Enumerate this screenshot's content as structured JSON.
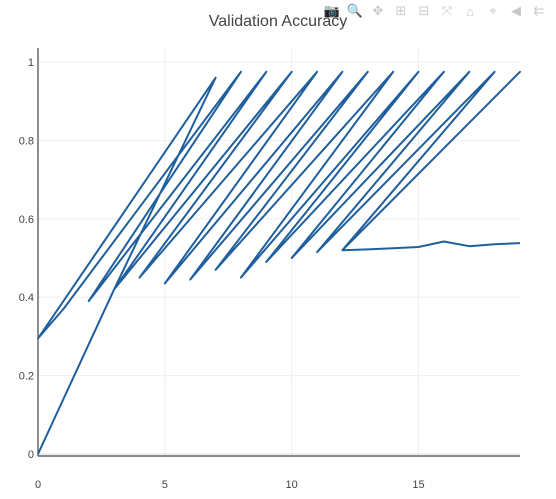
{
  "modebar": {
    "buttons": [
      {
        "name": "camera-icon",
        "glyph": "📷"
      },
      {
        "name": "zoom-icon",
        "glyph": "🔍"
      },
      {
        "name": "pan-icon",
        "glyph": "✥"
      },
      {
        "name": "zoom-in-icon",
        "glyph": "⊞"
      },
      {
        "name": "zoom-out-icon",
        "glyph": "⊟"
      },
      {
        "name": "autoscale-icon",
        "glyph": "⤧"
      },
      {
        "name": "reset-axes-icon",
        "glyph": "⌂"
      },
      {
        "name": "spike-lines-icon",
        "glyph": "⌖"
      },
      {
        "name": "hover-closest-icon",
        "glyph": "◀"
      },
      {
        "name": "hover-compare-icon",
        "glyph": "⇇"
      },
      {
        "name": "plotly-logo-icon",
        "glyph": "▮"
      }
    ]
  },
  "chart_data": {
    "type": "line",
    "title": "Validation Accuracy",
    "xlabel": "",
    "ylabel": "",
    "xlim": [
      0,
      19
    ],
    "ylim": [
      0,
      1.02
    ],
    "xticks": [
      0,
      5,
      10,
      15
    ],
    "yticks": [
      0,
      0.2,
      0.4,
      0.6,
      0.8,
      1
    ],
    "grid": true,
    "line_color": "#1f5f9e",
    "series": [
      {
        "x": [
          0,
          3,
          7,
          0,
          1,
          8,
          2,
          9,
          3,
          10,
          4,
          11,
          5,
          12,
          6,
          13,
          7,
          14,
          8,
          15,
          9,
          16,
          10,
          17,
          11,
          18,
          12,
          19,
          12,
          13,
          14,
          15,
          16,
          17,
          18,
          19
        ],
        "y": [
          0,
          0.42,
          0.96,
          0.295,
          0.37,
          0.975,
          0.39,
          0.975,
          0.42,
          0.975,
          0.45,
          0.975,
          0.435,
          0.975,
          0.445,
          0.975,
          0.47,
          0.975,
          0.45,
          0.975,
          0.49,
          0.975,
          0.5,
          0.975,
          0.515,
          0.975,
          0.52,
          0.975,
          0.52,
          0.522,
          0.525,
          0.528,
          0.542,
          0.53,
          0.535,
          0.538
        ]
      }
    ]
  }
}
